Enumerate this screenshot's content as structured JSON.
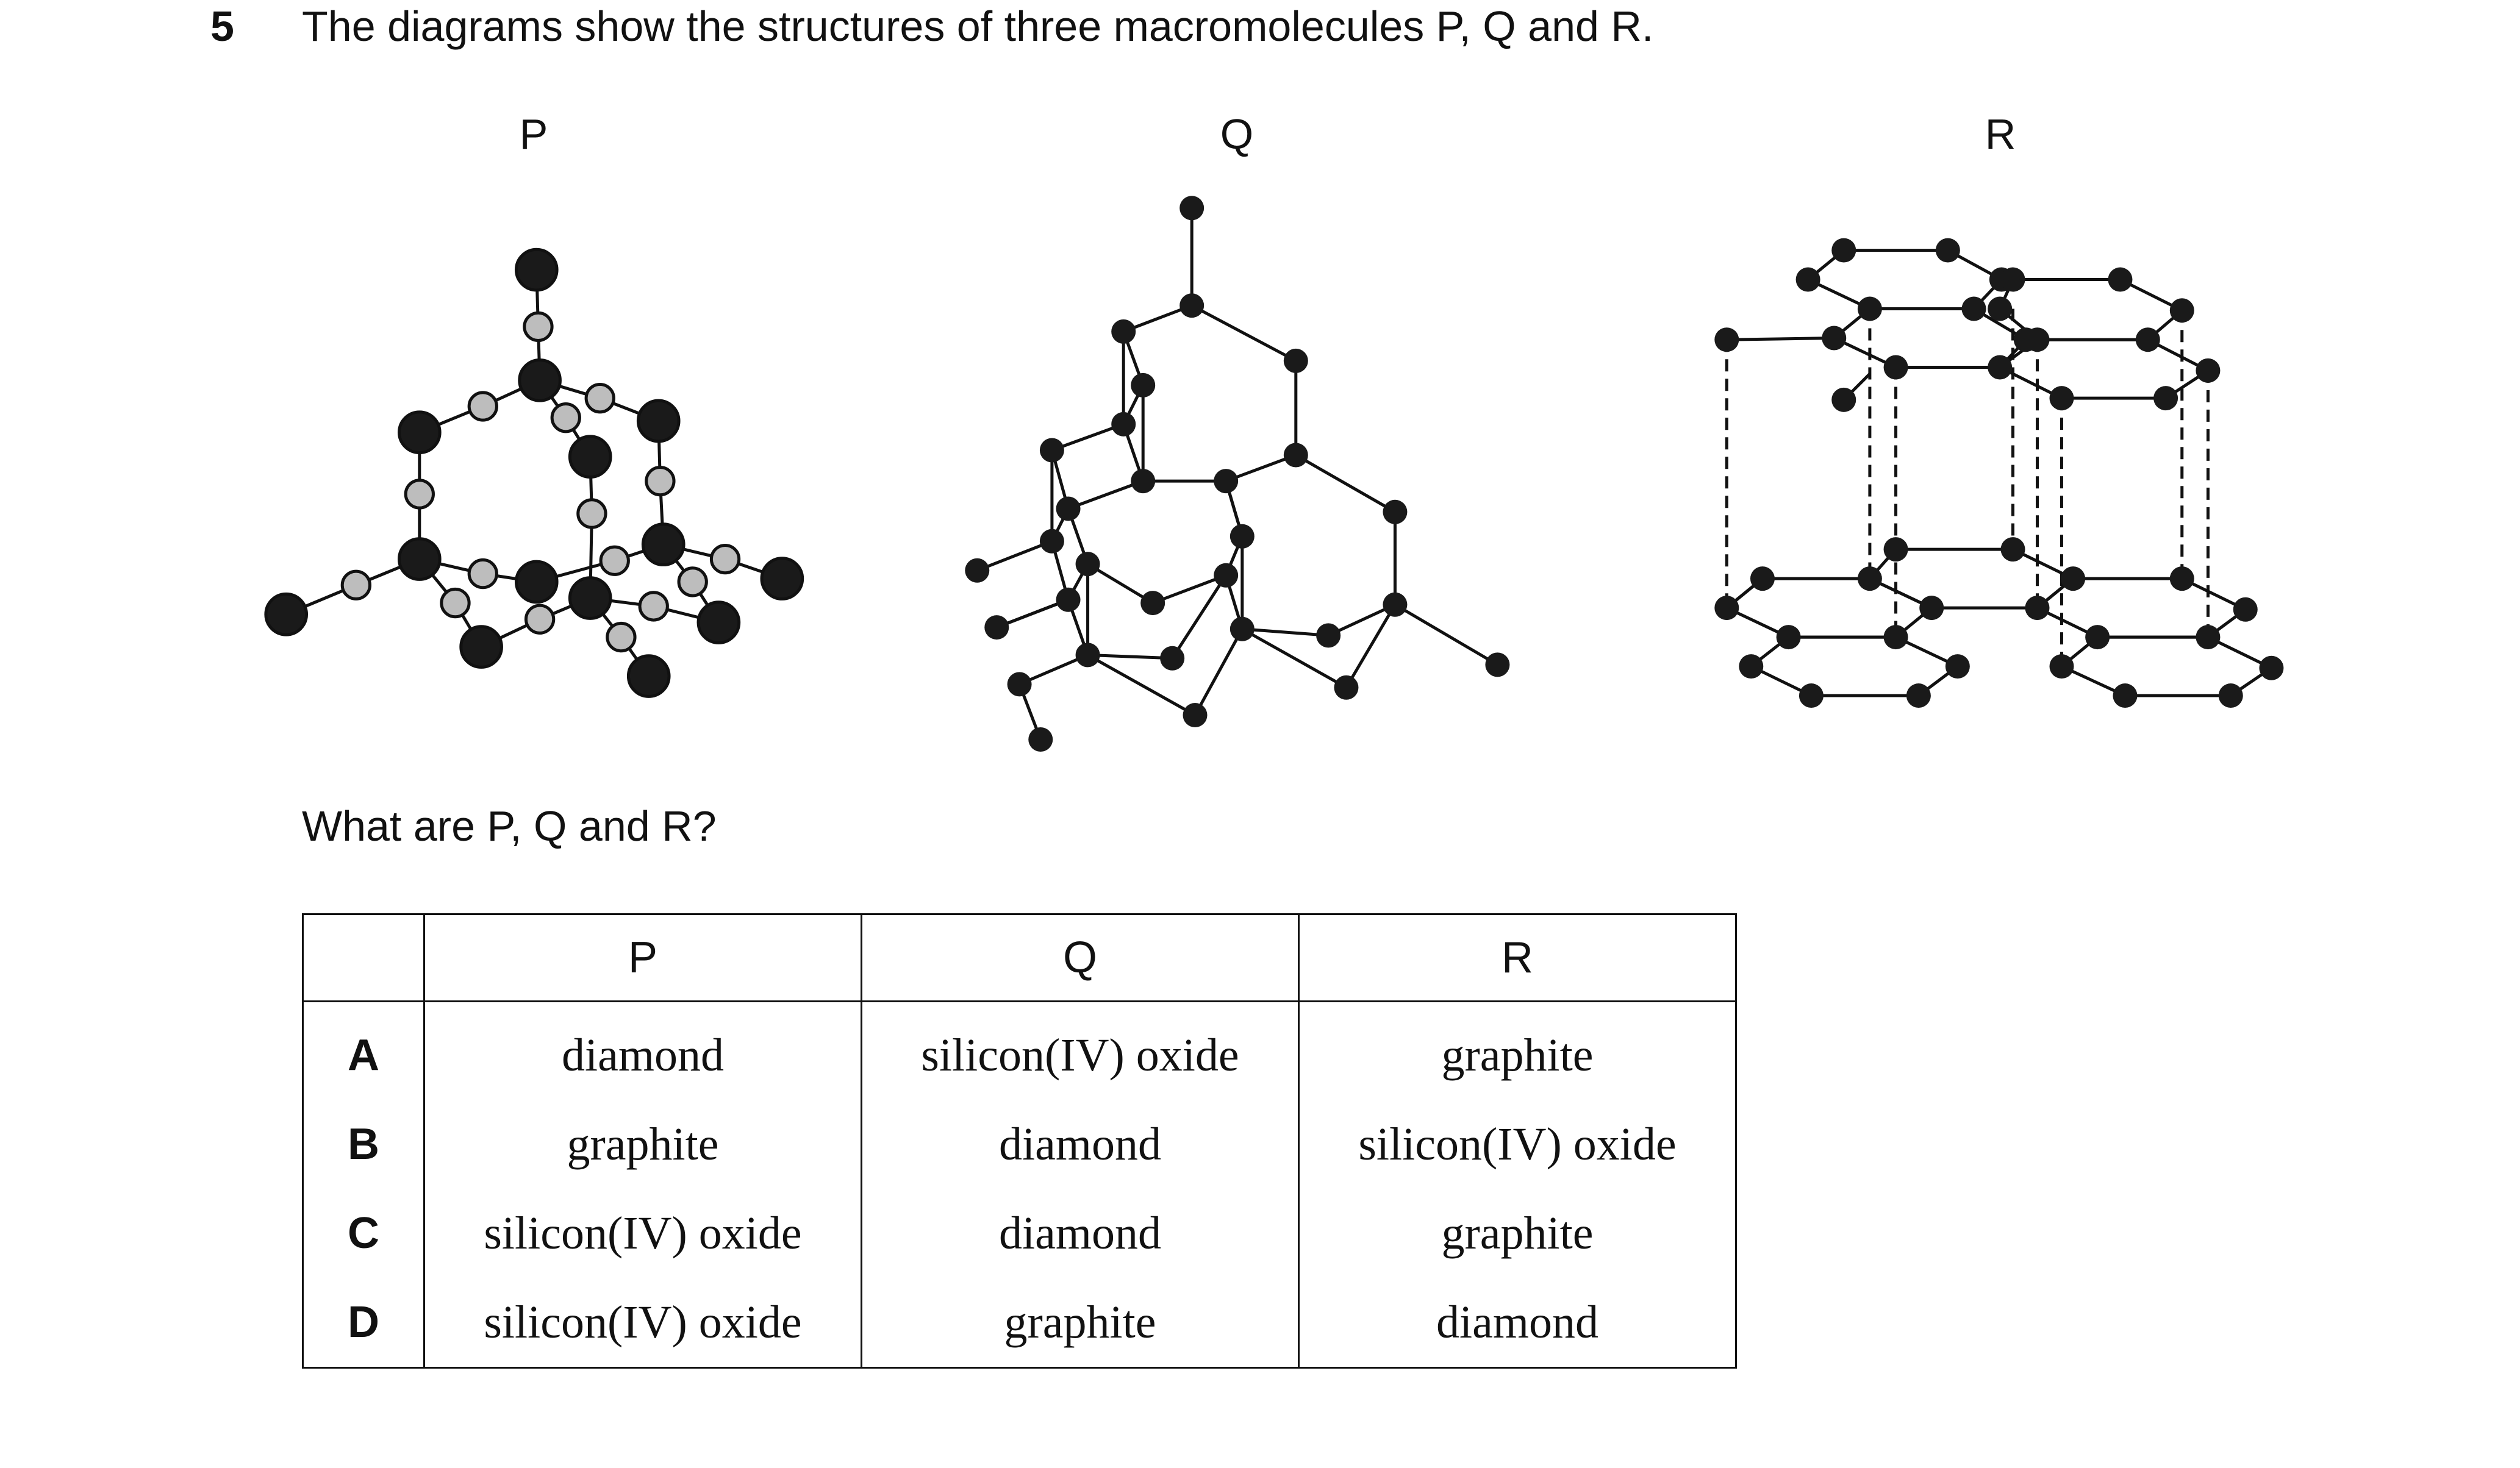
{
  "question": {
    "number": "5",
    "text": "The diagrams show the structures of three macromolecules P, Q and R.",
    "prompt": "What are P, Q and R?"
  },
  "diagrams": {
    "p_label": "P",
    "q_label": "Q",
    "r_label": "R"
  },
  "table": {
    "headers": [
      "",
      "P",
      "Q",
      "R"
    ],
    "rows": [
      {
        "option": "A",
        "p": "diamond",
        "q": "silicon(IV) oxide",
        "r": "graphite"
      },
      {
        "option": "B",
        "p": "graphite",
        "q": "diamond",
        "r": "silicon(IV) oxide"
      },
      {
        "option": "C",
        "p": "silicon(IV) oxide",
        "q": "diamond",
        "r": "graphite"
      },
      {
        "option": "D",
        "p": "silicon(IV) oxide",
        "q": "graphite",
        "r": "diamond"
      }
    ]
  },
  "colors": {
    "atom_dark": "#1a1a1a",
    "atom_light": "#bdbdbd",
    "line": "#111111"
  }
}
